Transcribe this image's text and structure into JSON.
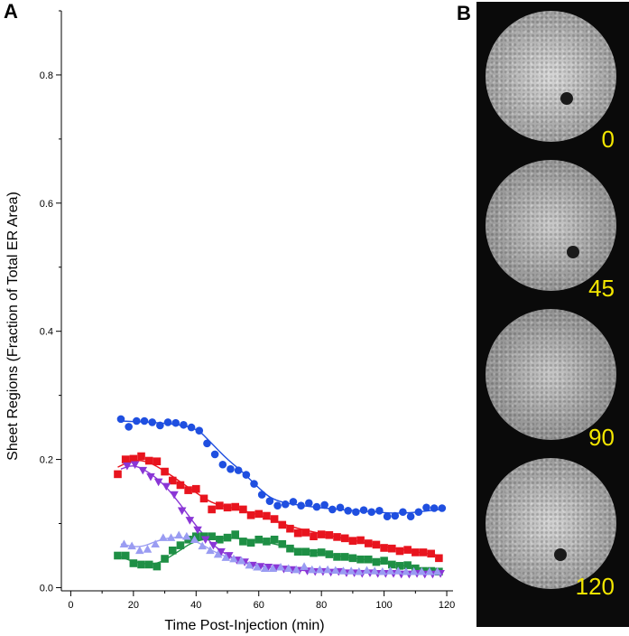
{
  "panels": {
    "a_label": "A",
    "b_label": "B"
  },
  "chart_data": {
    "type": "scatter",
    "xlabel": "Time Post-Injection (min)",
    "ylabel": "Sheet Regions (Fraction of Total ER Area)",
    "xlim": [
      -3,
      122
    ],
    "ylim": [
      -0.005,
      0.9
    ],
    "xticks": [
      0,
      20,
      40,
      60,
      80,
      100,
      120
    ],
    "yticks": [
      0.0,
      0.2,
      0.4,
      0.6,
      0.8
    ],
    "xtick_labels": [
      "0",
      "20",
      "40",
      "60",
      "80",
      "100",
      "120"
    ],
    "ytick_labels": [
      "0.0",
      "0.2",
      "0.4",
      "0.6",
      "0.8"
    ],
    "grid": false,
    "legend": "none",
    "series": [
      {
        "marker": "circle",
        "color": "#1f4fe0",
        "x": [
          16,
          18.5,
          21,
          23.5,
          26,
          28.5,
          31,
          33.5,
          36,
          38.5,
          41,
          43.5,
          46,
          48.5,
          51,
          53.5,
          56,
          58.5,
          61,
          63.5,
          66,
          68.5,
          71,
          73.5,
          76,
          78.5,
          81,
          83.5,
          86,
          88.5,
          91,
          93.5,
          96,
          98.5,
          101,
          103.5,
          106,
          108.5,
          111,
          113.5,
          116,
          118.5
        ],
        "y": [
          0.263,
          0.251,
          0.26,
          0.26,
          0.258,
          0.253,
          0.258,
          0.257,
          0.254,
          0.25,
          0.245,
          0.225,
          0.208,
          0.192,
          0.185,
          0.183,
          0.176,
          0.162,
          0.145,
          0.135,
          0.128,
          0.13,
          0.134,
          0.128,
          0.132,
          0.126,
          0.129,
          0.122,
          0.125,
          0.12,
          0.118,
          0.121,
          0.118,
          0.12,
          0.111,
          0.112,
          0.118,
          0.111,
          0.118,
          0.125,
          0.124,
          0.124
        ],
        "fit": [
          [
            16,
            0.26
          ],
          [
            30,
            0.257
          ],
          [
            40,
            0.25
          ],
          [
            45,
            0.225
          ],
          [
            50,
            0.2
          ],
          [
            55,
            0.18
          ],
          [
            60,
            0.155
          ],
          [
            65,
            0.135
          ],
          [
            75,
            0.127
          ],
          [
            85,
            0.122
          ],
          [
            95,
            0.119
          ],
          [
            105,
            0.115
          ],
          [
            118,
            0.122
          ]
        ]
      },
      {
        "marker": "square",
        "color": "#e8141e",
        "x": [
          15,
          17.5,
          20,
          22.5,
          25,
          27.5,
          30,
          32.5,
          35,
          37.5,
          40,
          42.5,
          45,
          47.5,
          50,
          52.5,
          55,
          57.5,
          60,
          62.5,
          65,
          67.5,
          70,
          72.5,
          75,
          77.5,
          80,
          82.5,
          85,
          87.5,
          90,
          92.5,
          95,
          97.5,
          100,
          102.5,
          105,
          107.5,
          110,
          112.5,
          115,
          117.5
        ],
        "y": [
          0.177,
          0.2,
          0.201,
          0.205,
          0.198,
          0.197,
          0.181,
          0.167,
          0.16,
          0.152,
          0.154,
          0.139,
          0.122,
          0.128,
          0.125,
          0.126,
          0.122,
          0.113,
          0.115,
          0.112,
          0.107,
          0.098,
          0.092,
          0.085,
          0.086,
          0.08,
          0.083,
          0.082,
          0.079,
          0.077,
          0.073,
          0.074,
          0.069,
          0.067,
          0.062,
          0.061,
          0.057,
          0.059,
          0.055,
          0.055,
          0.053,
          0.046
        ],
        "fit": [
          [
            15,
            0.188
          ],
          [
            20,
            0.2
          ],
          [
            25,
            0.196
          ],
          [
            30,
            0.182
          ],
          [
            35,
            0.165
          ],
          [
            40,
            0.148
          ],
          [
            45,
            0.132
          ],
          [
            50,
            0.126
          ],
          [
            60,
            0.114
          ],
          [
            70,
            0.095
          ],
          [
            80,
            0.084
          ],
          [
            90,
            0.074
          ],
          [
            100,
            0.064
          ],
          [
            110,
            0.056
          ],
          [
            118,
            0.05
          ]
        ]
      },
      {
        "marker": "square",
        "color": "#1e8f45",
        "x": [
          15,
          17.5,
          20,
          22.5,
          25,
          27.5,
          30,
          32.5,
          35,
          37.5,
          40,
          42.5,
          45,
          47.5,
          50,
          52.5,
          55,
          57.5,
          60,
          62.5,
          65,
          67.5,
          70,
          72.5,
          75,
          77.5,
          80,
          82.5,
          85,
          87.5,
          90,
          92.5,
          95,
          97.5,
          100,
          102.5,
          105,
          107.5,
          110,
          112.5,
          115,
          117.5
        ],
        "y": [
          0.05,
          0.05,
          0.038,
          0.036,
          0.036,
          0.033,
          0.045,
          0.058,
          0.066,
          0.075,
          0.08,
          0.08,
          0.08,
          0.075,
          0.078,
          0.083,
          0.072,
          0.07,
          0.075,
          0.072,
          0.075,
          0.068,
          0.061,
          0.056,
          0.056,
          0.054,
          0.055,
          0.052,
          0.048,
          0.048,
          0.046,
          0.044,
          0.044,
          0.04,
          0.042,
          0.036,
          0.034,
          0.035,
          0.03,
          0.026,
          0.026,
          0.025
        ],
        "fit": [
          [
            15,
            0.05
          ],
          [
            20,
            0.04
          ],
          [
            27,
            0.035
          ],
          [
            33,
            0.052
          ],
          [
            40,
            0.075
          ],
          [
            50,
            0.078
          ],
          [
            60,
            0.074
          ],
          [
            70,
            0.062
          ],
          [
            80,
            0.054
          ],
          [
            90,
            0.046
          ],
          [
            100,
            0.04
          ],
          [
            110,
            0.031
          ],
          [
            118,
            0.026
          ]
        ]
      },
      {
        "marker": "triangle-down",
        "color": "#8a36d6",
        "x": [
          18,
          20.5,
          23,
          25.5,
          28,
          30.5,
          33,
          35.5,
          38,
          40.5,
          43,
          45.5,
          48,
          50.5,
          53,
          55.5,
          58,
          60.5,
          63,
          65.5,
          68,
          70.5,
          73,
          75.5,
          78,
          80.5,
          83,
          85.5,
          88,
          90.5,
          93,
          95.5,
          98,
          100.5,
          103,
          105.5,
          108,
          110.5,
          113,
          115.5,
          118
        ],
        "y": [
          0.19,
          0.192,
          0.183,
          0.173,
          0.165,
          0.158,
          0.145,
          0.12,
          0.105,
          0.09,
          0.075,
          0.066,
          0.056,
          0.05,
          0.043,
          0.04,
          0.035,
          0.033,
          0.032,
          0.031,
          0.029,
          0.028,
          0.027,
          0.026,
          0.025,
          0.025,
          0.024,
          0.025,
          0.023,
          0.023,
          0.022,
          0.023,
          0.022,
          0.022,
          0.022,
          0.021,
          0.021,
          0.022,
          0.021,
          0.021,
          0.022
        ],
        "fit": [
          [
            16,
            0.185
          ],
          [
            20,
            0.192
          ],
          [
            25,
            0.18
          ],
          [
            30,
            0.16
          ],
          [
            35,
            0.13
          ],
          [
            40,
            0.096
          ],
          [
            45,
            0.068
          ],
          [
            50,
            0.05
          ],
          [
            55,
            0.04
          ],
          [
            60,
            0.034
          ],
          [
            70,
            0.028
          ],
          [
            80,
            0.025
          ],
          [
            100,
            0.022
          ],
          [
            118,
            0.022
          ]
        ]
      },
      {
        "marker": "triangle-up",
        "color": "#9a9cf2",
        "x": [
          17,
          19.5,
          22,
          24.5,
          27,
          29.5,
          32,
          34.5,
          37,
          39.5,
          42,
          44.5,
          47,
          49.5,
          52,
          54.5,
          57,
          59.5,
          62,
          64.5,
          67,
          69.5,
          72,
          74.5,
          77,
          79.5,
          82,
          84.5,
          87,
          89.5,
          92,
          94.5,
          97,
          99.5,
          102,
          104.5,
          107,
          109.5,
          112,
          114.5,
          117
        ],
        "y": [
          0.068,
          0.065,
          0.058,
          0.06,
          0.068,
          0.078,
          0.078,
          0.082,
          0.08,
          0.075,
          0.065,
          0.058,
          0.052,
          0.047,
          0.045,
          0.042,
          0.035,
          0.032,
          0.03,
          0.03,
          0.032,
          0.03,
          0.028,
          0.033,
          0.028,
          0.028,
          0.028,
          0.027,
          0.026,
          0.026,
          0.025,
          0.027,
          0.026,
          0.025,
          0.026,
          0.026,
          0.025,
          0.025,
          0.025,
          0.025,
          0.025
        ],
        "fit": [
          [
            16,
            0.068
          ],
          [
            22,
            0.062
          ],
          [
            28,
            0.074
          ],
          [
            34,
            0.08
          ],
          [
            40,
            0.073
          ],
          [
            46,
            0.055
          ],
          [
            52,
            0.044
          ],
          [
            58,
            0.034
          ],
          [
            65,
            0.03
          ],
          [
            80,
            0.028
          ],
          [
            100,
            0.026
          ],
          [
            118,
            0.025
          ]
        ]
      }
    ]
  },
  "micrographs": {
    "frames": [
      {
        "time_label": "0",
        "brightness": 0.72,
        "has_dot": true
      },
      {
        "time_label": "45",
        "brightness": 0.58,
        "has_dot": true
      },
      {
        "time_label": "90",
        "brightness": 0.54,
        "has_dot": false
      },
      {
        "time_label": "120",
        "brightness": 0.68,
        "has_dot": true
      }
    ]
  }
}
